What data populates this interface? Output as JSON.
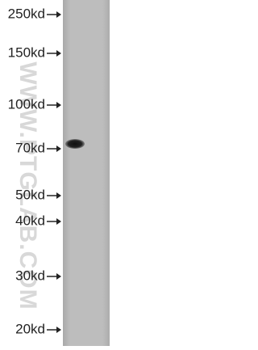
{
  "markers": [
    "250kd",
    "150kd",
    "100kd",
    "70kd",
    "50kd",
    "40kd",
    "30kd",
    "20kd"
  ],
  "watermark": "WWW.PTGLAB.COM"
}
